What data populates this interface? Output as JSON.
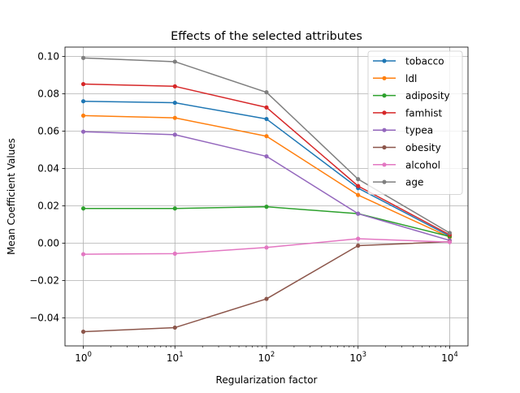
{
  "chart_data": {
    "type": "line",
    "title": "Effects of the selected attributes",
    "xlabel": "Regularization factor",
    "ylabel": "Mean Coefficient Values",
    "x_scale": "log",
    "x": [
      1,
      10,
      100,
      1000,
      10000
    ],
    "x_tick_labels": [
      {
        "base": "10",
        "exp": "0"
      },
      {
        "base": "10",
        "exp": "1"
      },
      {
        "base": "10",
        "exp": "2"
      },
      {
        "base": "10",
        "exp": "3"
      },
      {
        "base": "10",
        "exp": "4"
      }
    ],
    "ylim": [
      -0.055,
      0.105
    ],
    "y_ticks": [
      -0.04,
      -0.02,
      0.0,
      0.02,
      0.04,
      0.06,
      0.08,
      0.1
    ],
    "y_tick_labels": [
      "−0.04",
      "−0.02",
      "0.00",
      "0.02",
      "0.04",
      "0.06",
      "0.08",
      "0.10"
    ],
    "grid": true,
    "legend_position": "top-right",
    "series": [
      {
        "name": "tobacco",
        "color": "#1f77b4",
        "values": [
          0.076,
          0.0752,
          0.0665,
          0.0295,
          0.0038
        ]
      },
      {
        "name": "ldl",
        "color": "#ff7f0e",
        "values": [
          0.0683,
          0.0671,
          0.0573,
          0.0258,
          0.0032
        ]
      },
      {
        "name": "adiposity",
        "color": "#2ca02c",
        "values": [
          0.0186,
          0.0186,
          0.0195,
          0.0158,
          0.0036
        ]
      },
      {
        "name": "famhist",
        "color": "#d62728",
        "values": [
          0.0852,
          0.084,
          0.0727,
          0.0306,
          0.0045
        ]
      },
      {
        "name": "typea",
        "color": "#9467bd",
        "values": [
          0.0597,
          0.0581,
          0.0465,
          0.0158,
          0.0015
        ]
      },
      {
        "name": "obesity",
        "color": "#8c564b",
        "values": [
          -0.0474,
          -0.0452,
          -0.0298,
          -0.0013,
          0.0008
        ]
      },
      {
        "name": "alcohol",
        "color": "#e377c2",
        "values": [
          -0.0059,
          -0.0056,
          -0.0023,
          0.0024,
          0.0006
        ]
      },
      {
        "name": "age",
        "color": "#7f7f7f",
        "values": [
          0.0992,
          0.0972,
          0.0808,
          0.0343,
          0.0055
        ]
      }
    ]
  }
}
